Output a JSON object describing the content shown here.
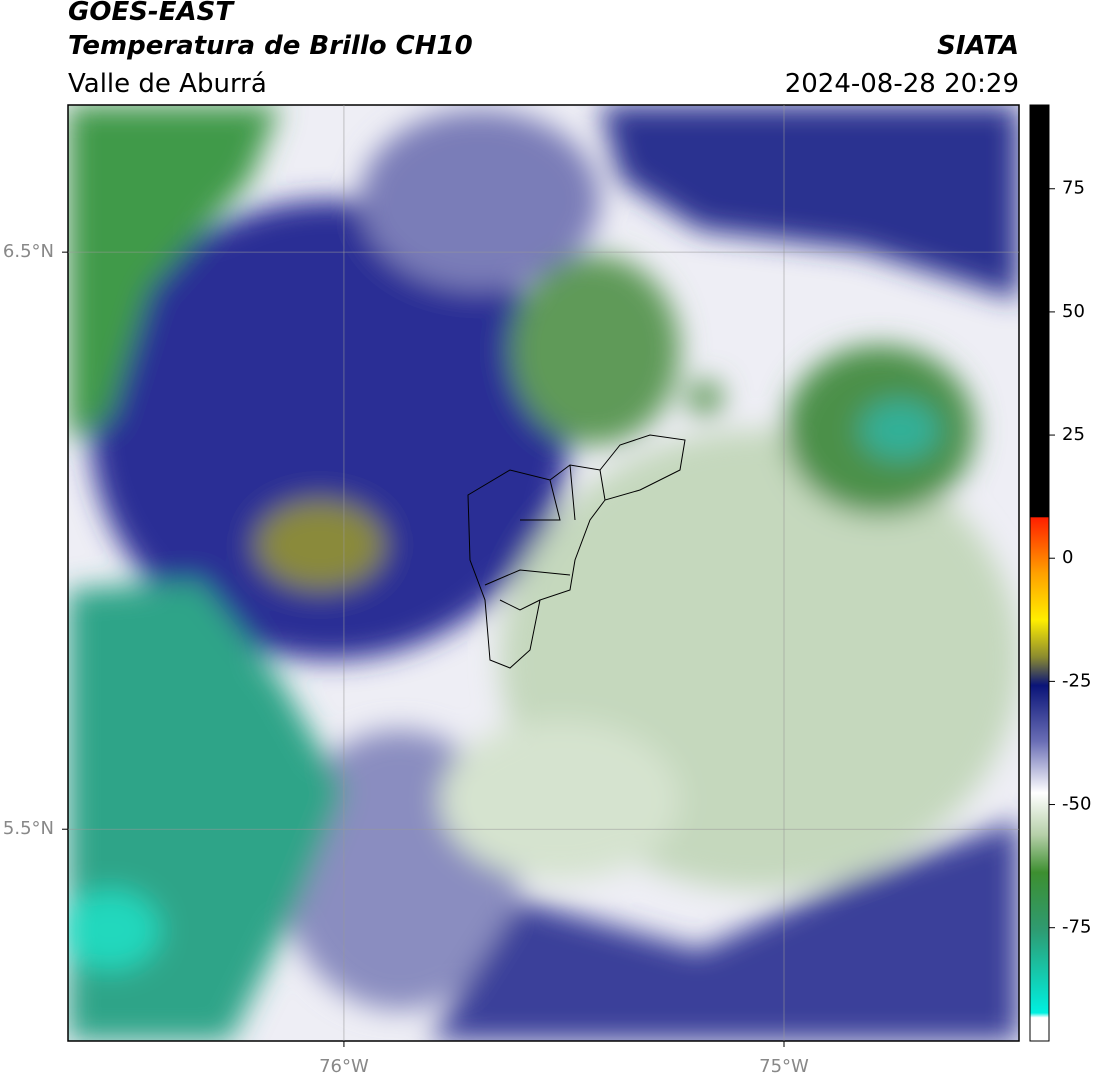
{
  "header": {
    "line1": "GOES-EAST",
    "line2": "Temperatura de Brillo CH10",
    "line3": "Valle de Aburrá",
    "source": "SIATA",
    "datetime": "2024-08-28 20:29"
  },
  "map": {
    "xlim": [
      -76.627,
      -74.466
    ],
    "ylim": [
      5.133,
      6.755
    ],
    "xticks": [
      {
        "value": -76,
        "label": "76°W"
      },
      {
        "value": -75,
        "label": "75°W"
      }
    ],
    "yticks": [
      {
        "value": 6.5,
        "label": "6.5°N"
      },
      {
        "value": 5.5,
        "label": "5.5°N"
      }
    ],
    "grid": true
  },
  "colorbar": {
    "range": [
      -98,
      92
    ],
    "ticks": [
      75,
      50,
      25,
      0,
      -25,
      -50,
      -75
    ]
  }
}
